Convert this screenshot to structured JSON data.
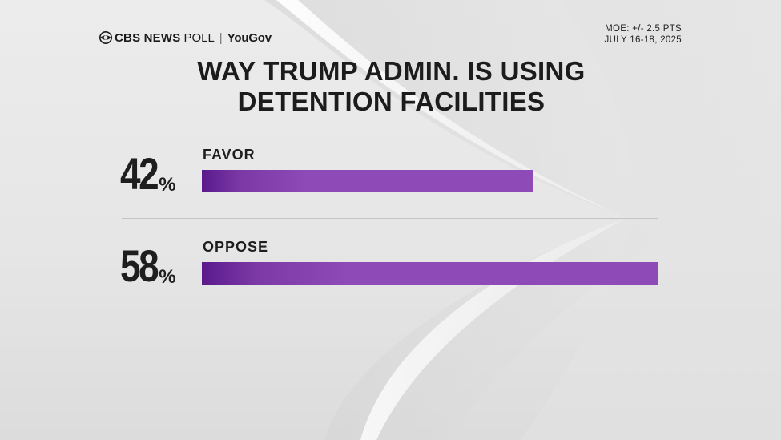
{
  "header": {
    "brand_cbs": "CBS NEWS",
    "brand_poll": "POLL",
    "brand_separator": "|",
    "brand_partner": "YouGov",
    "moe": "MOE: +/- 2.5 PTS",
    "dates": "JULY 16-18, 2025"
  },
  "chart_data": {
    "type": "bar",
    "orientation": "horizontal",
    "title_lines": [
      "WAY TRUMP ADMIN. IS USING",
      "DETENTION FACILITIES"
    ],
    "categories": [
      "FAVOR",
      "OPPOSE"
    ],
    "values": [
      42,
      58
    ],
    "value_labels": [
      "42",
      "58"
    ],
    "unit": "%",
    "xlim": [
      0,
      58
    ],
    "grid": false,
    "colors": {
      "bar_start": "#5a1a8c",
      "bar_end": "#8e4ab7"
    }
  }
}
